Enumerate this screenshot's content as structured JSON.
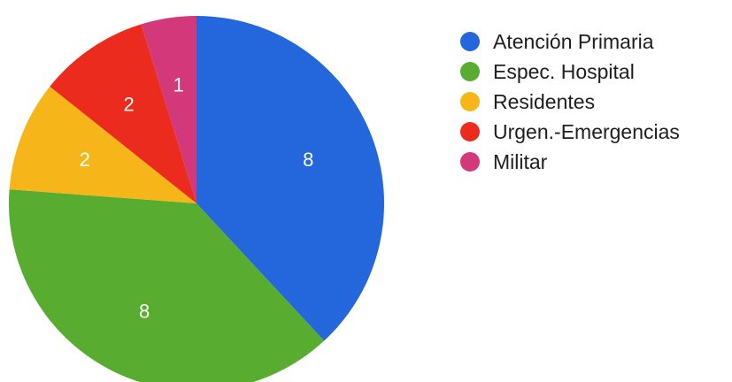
{
  "chart_data": {
    "type": "pie",
    "title": "",
    "legend_position": "right",
    "start_angle_deg": 0,
    "direction": "clockwise",
    "slices": [
      {
        "label": "Atención Primaria",
        "value": 8,
        "color": "#2466dc"
      },
      {
        "label": "Espec. Hospital",
        "value": 8,
        "color": "#58ad30"
      },
      {
        "label": "Residentes",
        "value": 2,
        "color": "#f6b619"
      },
      {
        "label": "Urgen.-Emergencias",
        "value": 2,
        "color": "#eb2b1d"
      },
      {
        "label": "Militar",
        "value": 1,
        "color": "#d2387a"
      }
    ]
  }
}
